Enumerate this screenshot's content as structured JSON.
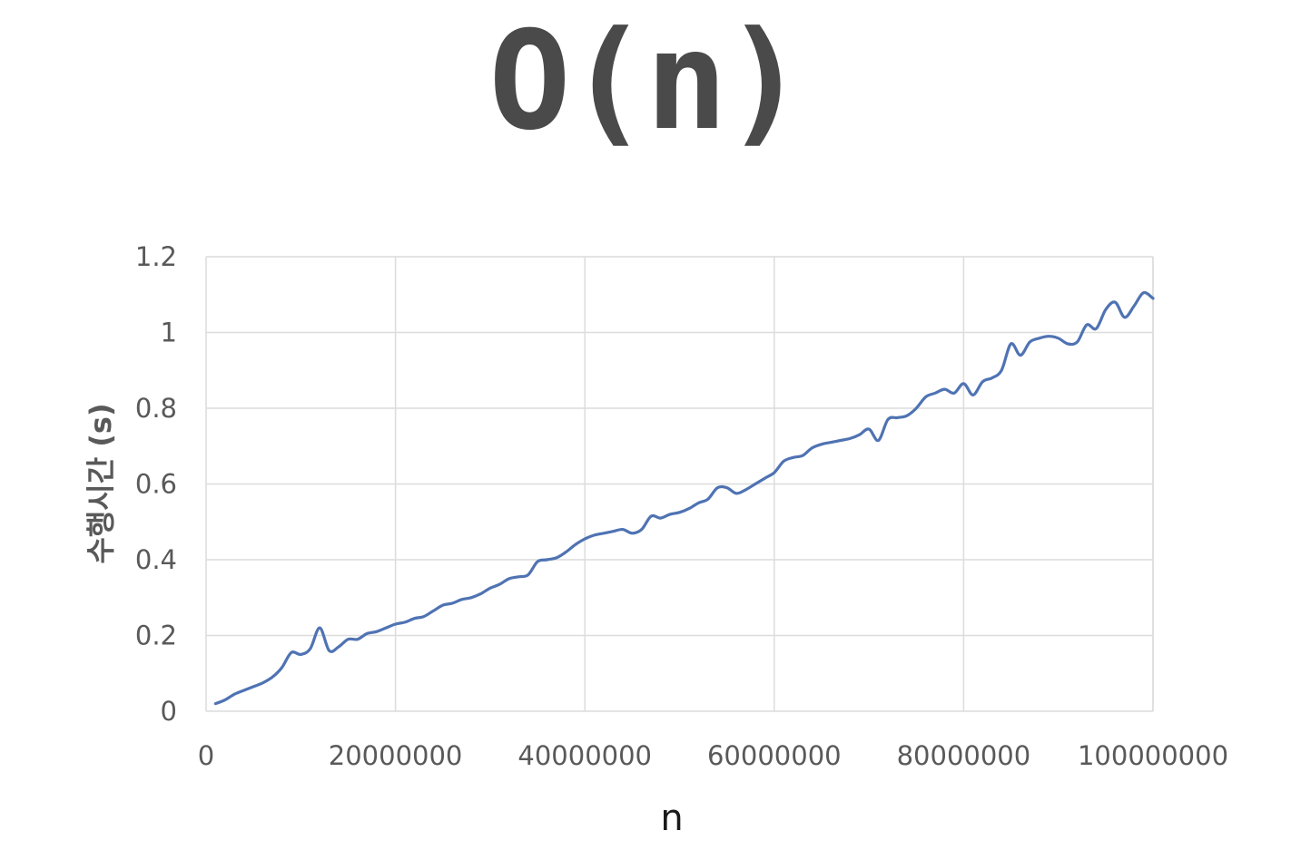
{
  "title": "O(n)",
  "chart_data": {
    "type": "line",
    "xlabel": "n",
    "ylabel": "수행시간 (s)",
    "xlim": [
      0,
      100000000
    ],
    "ylim": [
      0,
      1.2
    ],
    "x_ticks": [
      "0",
      "20000000",
      "40000000",
      "60000000",
      "80000000",
      "100000000"
    ],
    "y_ticks": [
      "0",
      "0.2",
      "0.4",
      "0.6",
      "0.8",
      "1",
      "1.2"
    ],
    "grid": true,
    "line_color": "#4f73b3",
    "grid_color": "#dcdcdc",
    "series": [
      {
        "x": [
          1000000,
          2000000,
          3000000,
          4000000,
          5000000,
          6000000,
          7000000,
          8000000,
          9000000,
          10000000,
          11000000,
          12000000,
          13000000,
          14000000,
          15000000,
          16000000,
          17000000,
          18000000,
          19000000,
          20000000,
          21000000,
          22000000,
          23000000,
          24000000,
          25000000,
          26000000,
          27000000,
          28000000,
          29000000,
          30000000,
          31000000,
          32000000,
          33000000,
          34000000,
          35000000,
          36000000,
          37000000,
          38000000,
          39000000,
          40000000,
          41000000,
          42000000,
          43000000,
          44000000,
          45000000,
          46000000,
          47000000,
          48000000,
          49000000,
          50000000,
          51000000,
          52000000,
          53000000,
          54000000,
          55000000,
          56000000,
          57000000,
          58000000,
          59000000,
          60000000,
          61000000,
          62000000,
          63000000,
          64000000,
          65000000,
          66000000,
          67000000,
          68000000,
          69000000,
          70000000,
          71000000,
          72000000,
          73000000,
          74000000,
          75000000,
          76000000,
          77000000,
          78000000,
          79000000,
          80000000,
          81000000,
          82000000,
          83000000,
          84000000,
          85000000,
          86000000,
          87000000,
          88000000,
          89000000,
          90000000,
          91000000,
          92000000,
          93000000,
          94000000,
          95000000,
          96000000,
          97000000,
          98000000,
          99000000,
          100000000
        ],
        "values": [
          0.02,
          0.03,
          0.045,
          0.055,
          0.065,
          0.075,
          0.09,
          0.115,
          0.155,
          0.15,
          0.165,
          0.22,
          0.16,
          0.17,
          0.19,
          0.19,
          0.205,
          0.21,
          0.22,
          0.23,
          0.235,
          0.245,
          0.25,
          0.265,
          0.28,
          0.285,
          0.295,
          0.3,
          0.31,
          0.325,
          0.335,
          0.35,
          0.355,
          0.36,
          0.395,
          0.4,
          0.405,
          0.42,
          0.44,
          0.455,
          0.465,
          0.47,
          0.475,
          0.48,
          0.47,
          0.48,
          0.515,
          0.51,
          0.52,
          0.525,
          0.535,
          0.55,
          0.56,
          0.59,
          0.59,
          0.575,
          0.585,
          0.6,
          0.615,
          0.63,
          0.66,
          0.67,
          0.675,
          0.695,
          0.705,
          0.71,
          0.715,
          0.72,
          0.73,
          0.745,
          0.715,
          0.77,
          0.775,
          0.78,
          0.8,
          0.83,
          0.84,
          0.85,
          0.84,
          0.865,
          0.835,
          0.87,
          0.88,
          0.9,
          0.97,
          0.94,
          0.975,
          0.985,
          0.99,
          0.985,
          0.97,
          0.975,
          1.02,
          1.01,
          1.06,
          1.08,
          1.04,
          1.07,
          1.105,
          1.09
        ]
      }
    ]
  }
}
